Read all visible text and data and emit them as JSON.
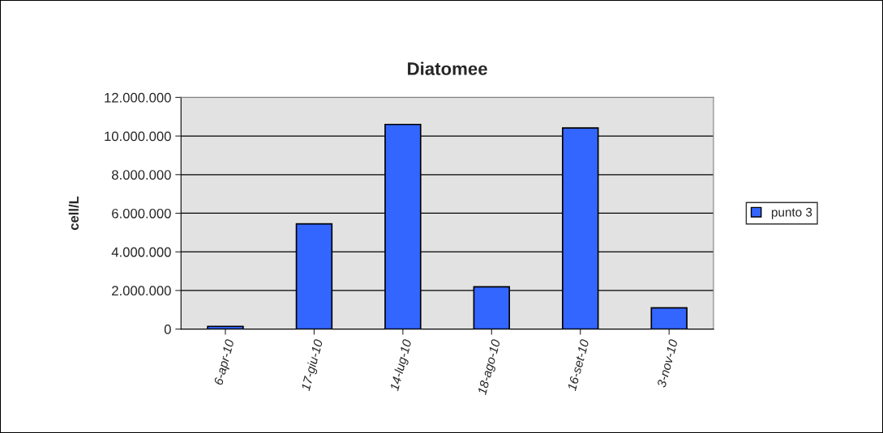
{
  "chart_data": {
    "type": "bar",
    "title": "Diatomee",
    "ylabel": "cell/L",
    "categories": [
      "6-apr-10",
      "17-giu-10",
      "14-lug-10",
      "18-ago-10",
      "16-set-10",
      "3-nov-10"
    ],
    "series": [
      {
        "name": "punto 3",
        "color": "#3366ff",
        "values": [
          140000,
          5450000,
          10600000,
          2190000,
          10420000,
          1100000
        ]
      }
    ],
    "ylim": [
      0,
      12000000
    ],
    "yticks": [
      {
        "value": 0,
        "label": "0"
      },
      {
        "value": 2000000,
        "label": "2.000.000"
      },
      {
        "value": 4000000,
        "label": "4.000.000"
      },
      {
        "value": 6000000,
        "label": "6.000.000"
      },
      {
        "value": 8000000,
        "label": "8.000.000"
      },
      {
        "value": 10000000,
        "label": "10.000.000"
      },
      {
        "value": 12000000,
        "label": "12.000.000"
      }
    ],
    "grid": "y",
    "legend": "right"
  }
}
